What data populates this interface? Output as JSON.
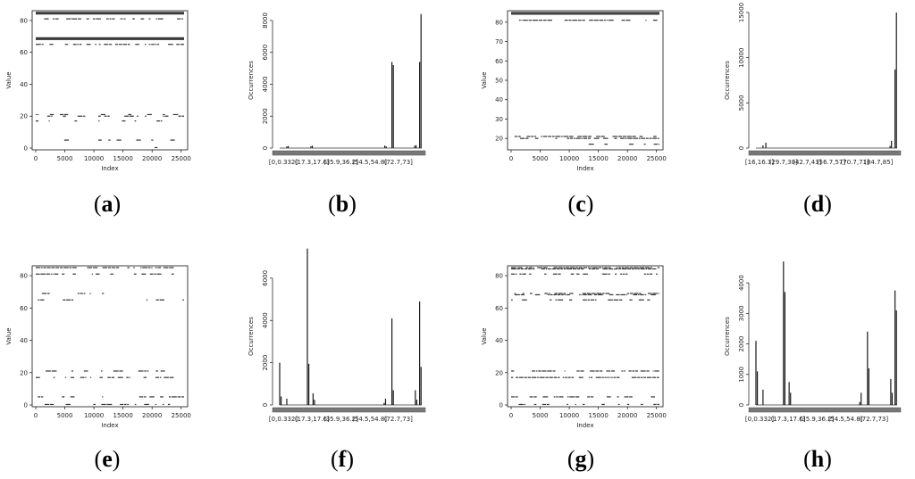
{
  "colors": {
    "ink": "#1a1a1a",
    "mark": "#333333",
    "axis": "#111111"
  },
  "chart_data": [
    {
      "id": "a",
      "caption_letter": "a",
      "type": "scatter",
      "xlabel": "Index",
      "ylabel": "Value",
      "xlim": [
        0,
        25500
      ],
      "ylim": [
        0,
        85
      ],
      "xticks": [
        0,
        5000,
        10000,
        15000,
        20000,
        25000
      ],
      "yticks": [
        0,
        20,
        40,
        60,
        80
      ],
      "bands": [
        {
          "y": 85,
          "xmin": 0,
          "xmax": 25500,
          "density": 1.0
        },
        {
          "y": 84.2,
          "xmin": 0,
          "xmax": 25500,
          "density": 1.0
        },
        {
          "y": 81,
          "xmin": 0,
          "xmax": 25500,
          "density": 0.55
        },
        {
          "y": 69,
          "xmin": 0,
          "xmax": 25500,
          "density": 1.0
        },
        {
          "y": 68.2,
          "xmin": 0,
          "xmax": 25500,
          "density": 1.0
        },
        {
          "y": 65,
          "xmin": 0,
          "xmax": 25500,
          "density": 0.5
        },
        {
          "y": 21,
          "xmin": 0,
          "xmax": 25500,
          "density": 0.35
        },
        {
          "y": 20,
          "xmin": 0,
          "xmax": 25500,
          "density": 0.35
        },
        {
          "y": 17,
          "xmin": 0,
          "xmax": 25500,
          "density": 0.15
        },
        {
          "y": 5,
          "xmin": 0,
          "xmax": 25500,
          "density": 0.25
        },
        {
          "y": 0.3,
          "xmin": 0,
          "xmax": 25500,
          "density": 0.12
        }
      ]
    },
    {
      "id": "b",
      "caption_letter": "b",
      "type": "bar",
      "xlabel": "",
      "ylabel": "Occurrences",
      "ylim": [
        0,
        8500
      ],
      "yticks": [
        0,
        2000,
        4000,
        6000,
        8000
      ],
      "tick_labels": [
        "[0,0.332]",
        "(17.3,17.6]",
        "(35.9,36.2]",
        "(54.5,54.8]",
        "(72.7,73]"
      ],
      "bars": [
        {
          "x": 0.05,
          "value": 100
        },
        {
          "x": 0.06,
          "value": 130
        },
        {
          "x": 0.22,
          "value": 120
        },
        {
          "x": 0.23,
          "value": 150
        },
        {
          "x": 0.74,
          "value": 160
        },
        {
          "x": 0.75,
          "value": 100
        },
        {
          "x": 0.79,
          "value": 5400
        },
        {
          "x": 0.8,
          "value": 5200
        },
        {
          "x": 0.95,
          "value": 150
        },
        {
          "x": 0.96,
          "value": 180
        },
        {
          "x": 0.985,
          "value": 5400
        },
        {
          "x": 0.995,
          "value": 8400
        }
      ]
    },
    {
      "id": "c",
      "caption_letter": "c",
      "type": "scatter",
      "xlabel": "Index",
      "ylabel": "Value",
      "xlim": [
        0,
        25500
      ],
      "ylim": [
        15,
        85
      ],
      "xticks": [
        0,
        5000,
        10000,
        15000,
        20000,
        25000
      ],
      "yticks": [
        20,
        30,
        40,
        50,
        60,
        70,
        80
      ],
      "bands": [
        {
          "y": 85,
          "xmin": 0,
          "xmax": 25500,
          "density": 1.0
        },
        {
          "y": 84.2,
          "xmin": 0,
          "xmax": 25500,
          "density": 1.0
        },
        {
          "y": 81,
          "xmin": 0,
          "xmax": 25500,
          "density": 0.55
        },
        {
          "y": 21,
          "xmin": 0,
          "xmax": 25500,
          "density": 0.6
        },
        {
          "y": 20,
          "xmin": 0,
          "xmax": 25500,
          "density": 0.6
        },
        {
          "y": 17,
          "xmin": 0,
          "xmax": 25500,
          "density": 0.15
        }
      ]
    },
    {
      "id": "d",
      "caption_letter": "d",
      "type": "bar",
      "xlabel": "",
      "ylabel": "Occurrences",
      "ylim": [
        0,
        15000
      ],
      "yticks": [
        0,
        5000,
        10000,
        15000
      ],
      "tick_labels": [
        "[16,16.3]",
        "(29.7,30]",
        "(42.7,43]",
        "(56.7,57]",
        "(70.7,71]",
        "(84.7,85]"
      ],
      "bars": [
        {
          "x": 0.05,
          "value": 300
        },
        {
          "x": 0.07,
          "value": 600
        },
        {
          "x": 0.95,
          "value": 250
        },
        {
          "x": 0.96,
          "value": 800
        },
        {
          "x": 0.985,
          "value": 8700
        },
        {
          "x": 0.995,
          "value": 15000
        }
      ]
    },
    {
      "id": "e",
      "caption_letter": "e",
      "type": "scatter",
      "xlabel": "Index",
      "ylabel": "Value",
      "xlim": [
        0,
        25500
      ],
      "ylim": [
        0,
        85
      ],
      "xticks": [
        0,
        5000,
        10000,
        15000,
        20000,
        25000
      ],
      "yticks": [
        0,
        20,
        40,
        60,
        80
      ],
      "bands": [
        {
          "y": 85,
          "xmin": 0,
          "xmax": 25500,
          "density": 0.6
        },
        {
          "y": 81,
          "xmin": 0,
          "xmax": 25500,
          "density": 0.45
        },
        {
          "y": 69,
          "xmin": 0,
          "xmax": 14000,
          "density": 0.3
        },
        {
          "y": 69,
          "xmin": 22500,
          "xmax": 25500,
          "density": 0.3
        },
        {
          "y": 65,
          "xmin": 0,
          "xmax": 7000,
          "density": 0.25
        },
        {
          "y": 65,
          "xmin": 19000,
          "xmax": 25500,
          "density": 0.2
        },
        {
          "y": 21,
          "xmin": 0,
          "xmax": 25500,
          "density": 0.35
        },
        {
          "y": 17,
          "xmin": 0,
          "xmax": 25500,
          "density": 0.45
        },
        {
          "y": 5,
          "xmin": 0,
          "xmax": 25500,
          "density": 0.3
        },
        {
          "y": 0.3,
          "xmin": 0,
          "xmax": 25500,
          "density": 0.25
        }
      ]
    },
    {
      "id": "f",
      "caption_letter": "f",
      "type": "bar",
      "xlabel": "",
      "ylabel": "Occurrences",
      "ylim": [
        0,
        6500
      ],
      "yticks": [
        0,
        2000,
        4000,
        6000
      ],
      "tick_labels": [
        "[0,0.332]",
        "(17.3,17.6]",
        "(35.9,36.2]",
        "(54.5,54.8]",
        "(72.7,73]"
      ],
      "bars": [
        {
          "x": 0.0,
          "value": 2000
        },
        {
          "x": 0.01,
          "value": 400
        },
        {
          "x": 0.05,
          "value": 300
        },
        {
          "x": 0.195,
          "value": 7400
        },
        {
          "x": 0.205,
          "value": 1950
        },
        {
          "x": 0.235,
          "value": 550
        },
        {
          "x": 0.245,
          "value": 250
        },
        {
          "x": 0.735,
          "value": 100
        },
        {
          "x": 0.745,
          "value": 300
        },
        {
          "x": 0.79,
          "value": 4100
        },
        {
          "x": 0.8,
          "value": 700
        },
        {
          "x": 0.955,
          "value": 700
        },
        {
          "x": 0.965,
          "value": 250
        },
        {
          "x": 0.985,
          "value": 4900
        },
        {
          "x": 0.995,
          "value": 1800
        }
      ]
    },
    {
      "id": "g",
      "caption_letter": "g",
      "type": "scatter",
      "xlabel": "Index",
      "ylabel": "Value",
      "xlim": [
        0,
        25500
      ],
      "ylim": [
        0,
        85
      ],
      "xticks": [
        0,
        5000,
        10000,
        15000,
        20000,
        25000
      ],
      "yticks": [
        0,
        20,
        40,
        60,
        80
      ],
      "bands": [
        {
          "y": 85,
          "xmin": 0,
          "xmax": 25500,
          "density": 0.8
        },
        {
          "y": 84.2,
          "xmin": 0,
          "xmax": 25500,
          "density": 0.8
        },
        {
          "y": 81,
          "xmin": 0,
          "xmax": 25500,
          "density": 0.55
        },
        {
          "y": 69,
          "xmin": 0,
          "xmax": 25500,
          "density": 0.55
        },
        {
          "y": 68.2,
          "xmin": 0,
          "xmax": 25500,
          "density": 0.5
        },
        {
          "y": 65,
          "xmin": 0,
          "xmax": 25500,
          "density": 0.35
        },
        {
          "y": 21,
          "xmin": 0,
          "xmax": 25500,
          "density": 0.65
        },
        {
          "y": 17,
          "xmin": 0,
          "xmax": 25500,
          "density": 0.75
        },
        {
          "y": 5,
          "xmin": 0,
          "xmax": 25500,
          "density": 0.5
        },
        {
          "y": 0.3,
          "xmin": 0,
          "xmax": 25500,
          "density": 0.45
        }
      ]
    },
    {
      "id": "h",
      "caption_letter": "h",
      "type": "bar",
      "xlabel": "",
      "ylabel": "Occurrences",
      "ylim": [
        0,
        4500
      ],
      "yticks": [
        0,
        1000,
        2000,
        3000,
        4000
      ],
      "tick_labels": [
        "[0,0.332]",
        "(17.3,17.6]",
        "(35.9,36.2]",
        "(54.5,54.8]",
        "(72.7,73]"
      ],
      "bars": [
        {
          "x": 0.0,
          "value": 2100
        },
        {
          "x": 0.01,
          "value": 1100
        },
        {
          "x": 0.05,
          "value": 500
        },
        {
          "x": 0.195,
          "value": 4700
        },
        {
          "x": 0.205,
          "value": 3700
        },
        {
          "x": 0.235,
          "value": 750
        },
        {
          "x": 0.245,
          "value": 400
        },
        {
          "x": 0.735,
          "value": 100
        },
        {
          "x": 0.745,
          "value": 400
        },
        {
          "x": 0.79,
          "value": 2400
        },
        {
          "x": 0.8,
          "value": 1200
        },
        {
          "x": 0.955,
          "value": 850
        },
        {
          "x": 0.965,
          "value": 400
        },
        {
          "x": 0.985,
          "value": 3750
        },
        {
          "x": 0.995,
          "value": 3100
        }
      ]
    }
  ]
}
